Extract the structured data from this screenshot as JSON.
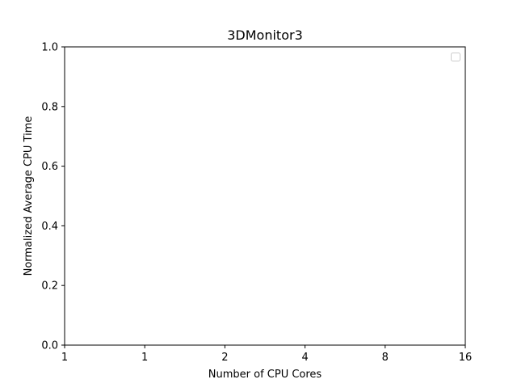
{
  "chart_data": {
    "type": "line",
    "title": "3DMonitor3",
    "xlabel": "Number of CPU Cores",
    "ylabel": "Normalized Average CPU Time",
    "x_tick_labels": [
      "1",
      "1",
      "2",
      "4",
      "8",
      "16"
    ],
    "y_ticks": [
      0.0,
      0.2,
      0.4,
      0.6,
      0.8,
      1.0
    ],
    "y_tick_labels": [
      "0.0",
      "0.2",
      "0.4",
      "0.6",
      "0.8",
      "1.0"
    ],
    "ylim": [
      0.0,
      1.0
    ],
    "grid": false,
    "legend": {
      "placement": "upper right",
      "entries": []
    },
    "series": []
  }
}
